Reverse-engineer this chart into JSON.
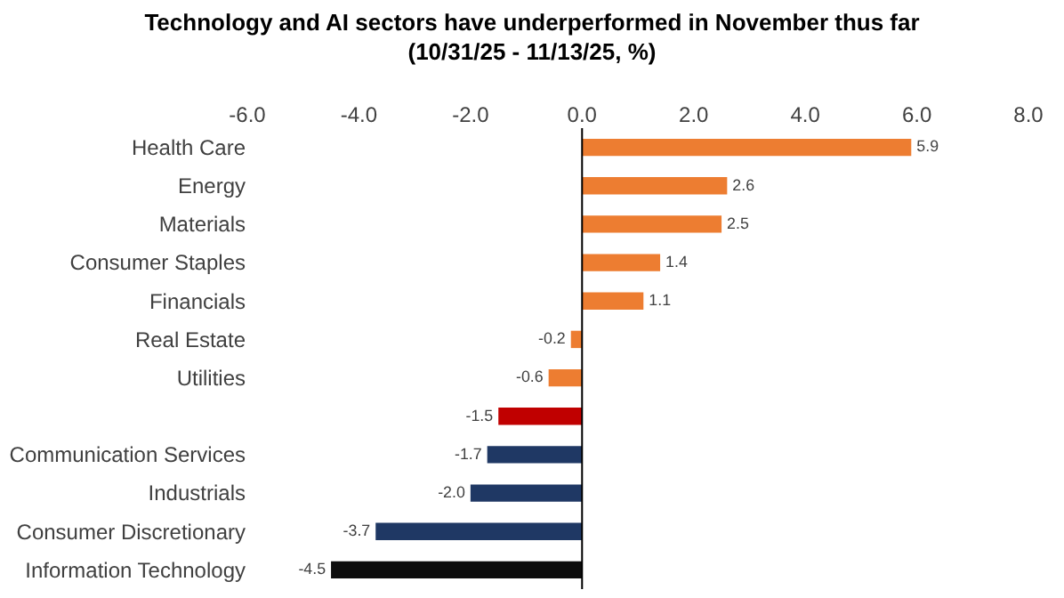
{
  "chart_data": {
    "type": "bar",
    "orientation": "horizontal",
    "title": "Technology and AI sectors have underperformed in November thus far\n(10/31/25 - 11/13/25, %)",
    "categories": [
      "Health Care",
      "Energy",
      "Materials",
      "Consumer Staples",
      "Financials",
      "Real Estate",
      "Utilities",
      null,
      "Communication Services",
      "Industrials",
      "Consumer Discretionary",
      "Information Technology"
    ],
    "values": [
      5.9,
      2.6,
      2.5,
      1.4,
      1.1,
      -0.2,
      -0.6,
      -1.5,
      -1.7,
      -2.0,
      -3.7,
      -4.5
    ],
    "value_labels": [
      "5.9",
      "2.6",
      "2.5",
      "1.4",
      "1.1",
      "-0.2",
      "-0.6",
      "-1.5",
      "-1.7",
      "-2.0",
      "-3.7",
      "-4.5"
    ],
    "colors": [
      "#ed7d31",
      "#ed7d31",
      "#ed7d31",
      "#ed7d31",
      "#ed7d31",
      "#ed7d31",
      "#ed7d31",
      "#c00000",
      "#1f3864",
      "#1f3864",
      "#1f3864",
      "#0d0d0d"
    ],
    "xlim": [
      -6,
      8
    ],
    "xticks": [
      {
        "value": -6,
        "label": "-6.0"
      },
      {
        "value": -4,
        "label": "-4.0"
      },
      {
        "value": -2,
        "label": "-2.0"
      },
      {
        "value": 0,
        "label": "0.0"
      },
      {
        "value": 2,
        "label": "2.0"
      },
      {
        "value": 4,
        "label": "4.0"
      },
      {
        "value": 6,
        "label": "6.0"
      },
      {
        "value": 8,
        "label": "8.0"
      }
    ],
    "ref_lines": [
      {
        "axis": "x",
        "value": 0,
        "color": "#000000",
        "line_style": "solid"
      }
    ],
    "legend": false
  }
}
